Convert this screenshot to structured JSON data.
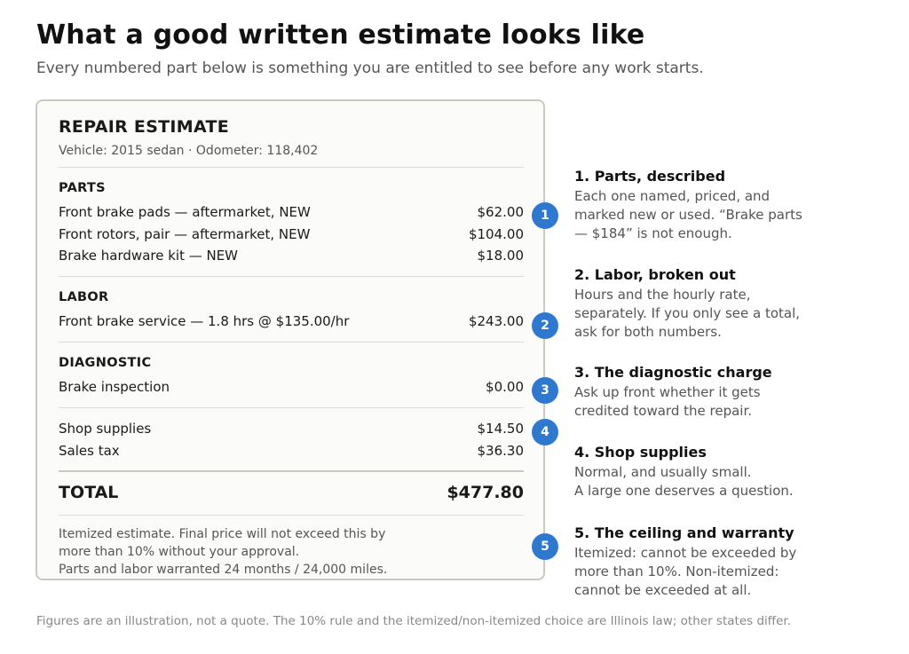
{
  "header": {
    "title": "What a good written estimate looks like",
    "subtitle": "Every numbered part below is something you are entitled to see before any work starts."
  },
  "estimate": {
    "title": "REPAIR ESTIMATE",
    "vehicle_line": "Vehicle: 2015 sedan · Odometer: 118,402",
    "parts": {
      "heading": "PARTS",
      "items": [
        {
          "label": "Front brake pads — aftermarket, NEW",
          "price": "$62.00"
        },
        {
          "label": "Front rotors, pair — aftermarket, NEW",
          "price": "$104.00"
        },
        {
          "label": "Brake hardware kit — NEW",
          "price": "$18.00"
        }
      ]
    },
    "labor": {
      "heading": "LABOR",
      "items": [
        {
          "label": "Front brake service — 1.8 hrs @ $135.00/hr",
          "price": "$243.00"
        }
      ]
    },
    "diagnostic": {
      "heading": "DIAGNOSTIC",
      "items": [
        {
          "label": "Brake inspection",
          "price": "$0.00"
        }
      ]
    },
    "other": [
      {
        "label": "Shop supplies",
        "price": "$14.50"
      },
      {
        "label": "Sales tax",
        "price": "$36.30"
      }
    ],
    "total": {
      "label": "TOTAL",
      "value": "$477.80"
    },
    "footnote": {
      "line1": "Itemized estimate. Final price will not exceed this by",
      "line2": "more than 10% without your approval.",
      "line3": "Parts and labor warranted 24 months / 24,000 miles."
    }
  },
  "badges": [
    "1",
    "2",
    "3",
    "4",
    "5"
  ],
  "notes": [
    {
      "title": "1. Parts, described",
      "body": "Each one named, priced, and marked new or used. “Brake parts — $184” is not enough."
    },
    {
      "title": "2. Labor, broken out",
      "body": "Hours and the hourly rate, separately. If you only see a total, ask for both numbers."
    },
    {
      "title": "3. The diagnostic charge",
      "body": "Ask up front whether it gets credited toward the repair."
    },
    {
      "title": "4. Shop supplies",
      "body_line1": "Normal, and usually small.",
      "body_line2": "A large one deserves a question."
    },
    {
      "title": "5. The ceiling and warranty",
      "body": "Itemized: cannot be exceeded by more than 10%. Non-itemized: cannot be exceeded at all."
    }
  ],
  "colors": {
    "accent": "#2f78d0",
    "card_border": "#c9c9c2",
    "card_bg": "#fbfbf9"
  },
  "footer": "Figures are an illustration, not a quote. The 10% rule and the itemized/non-itemized choice are Illinois law; other states differ."
}
